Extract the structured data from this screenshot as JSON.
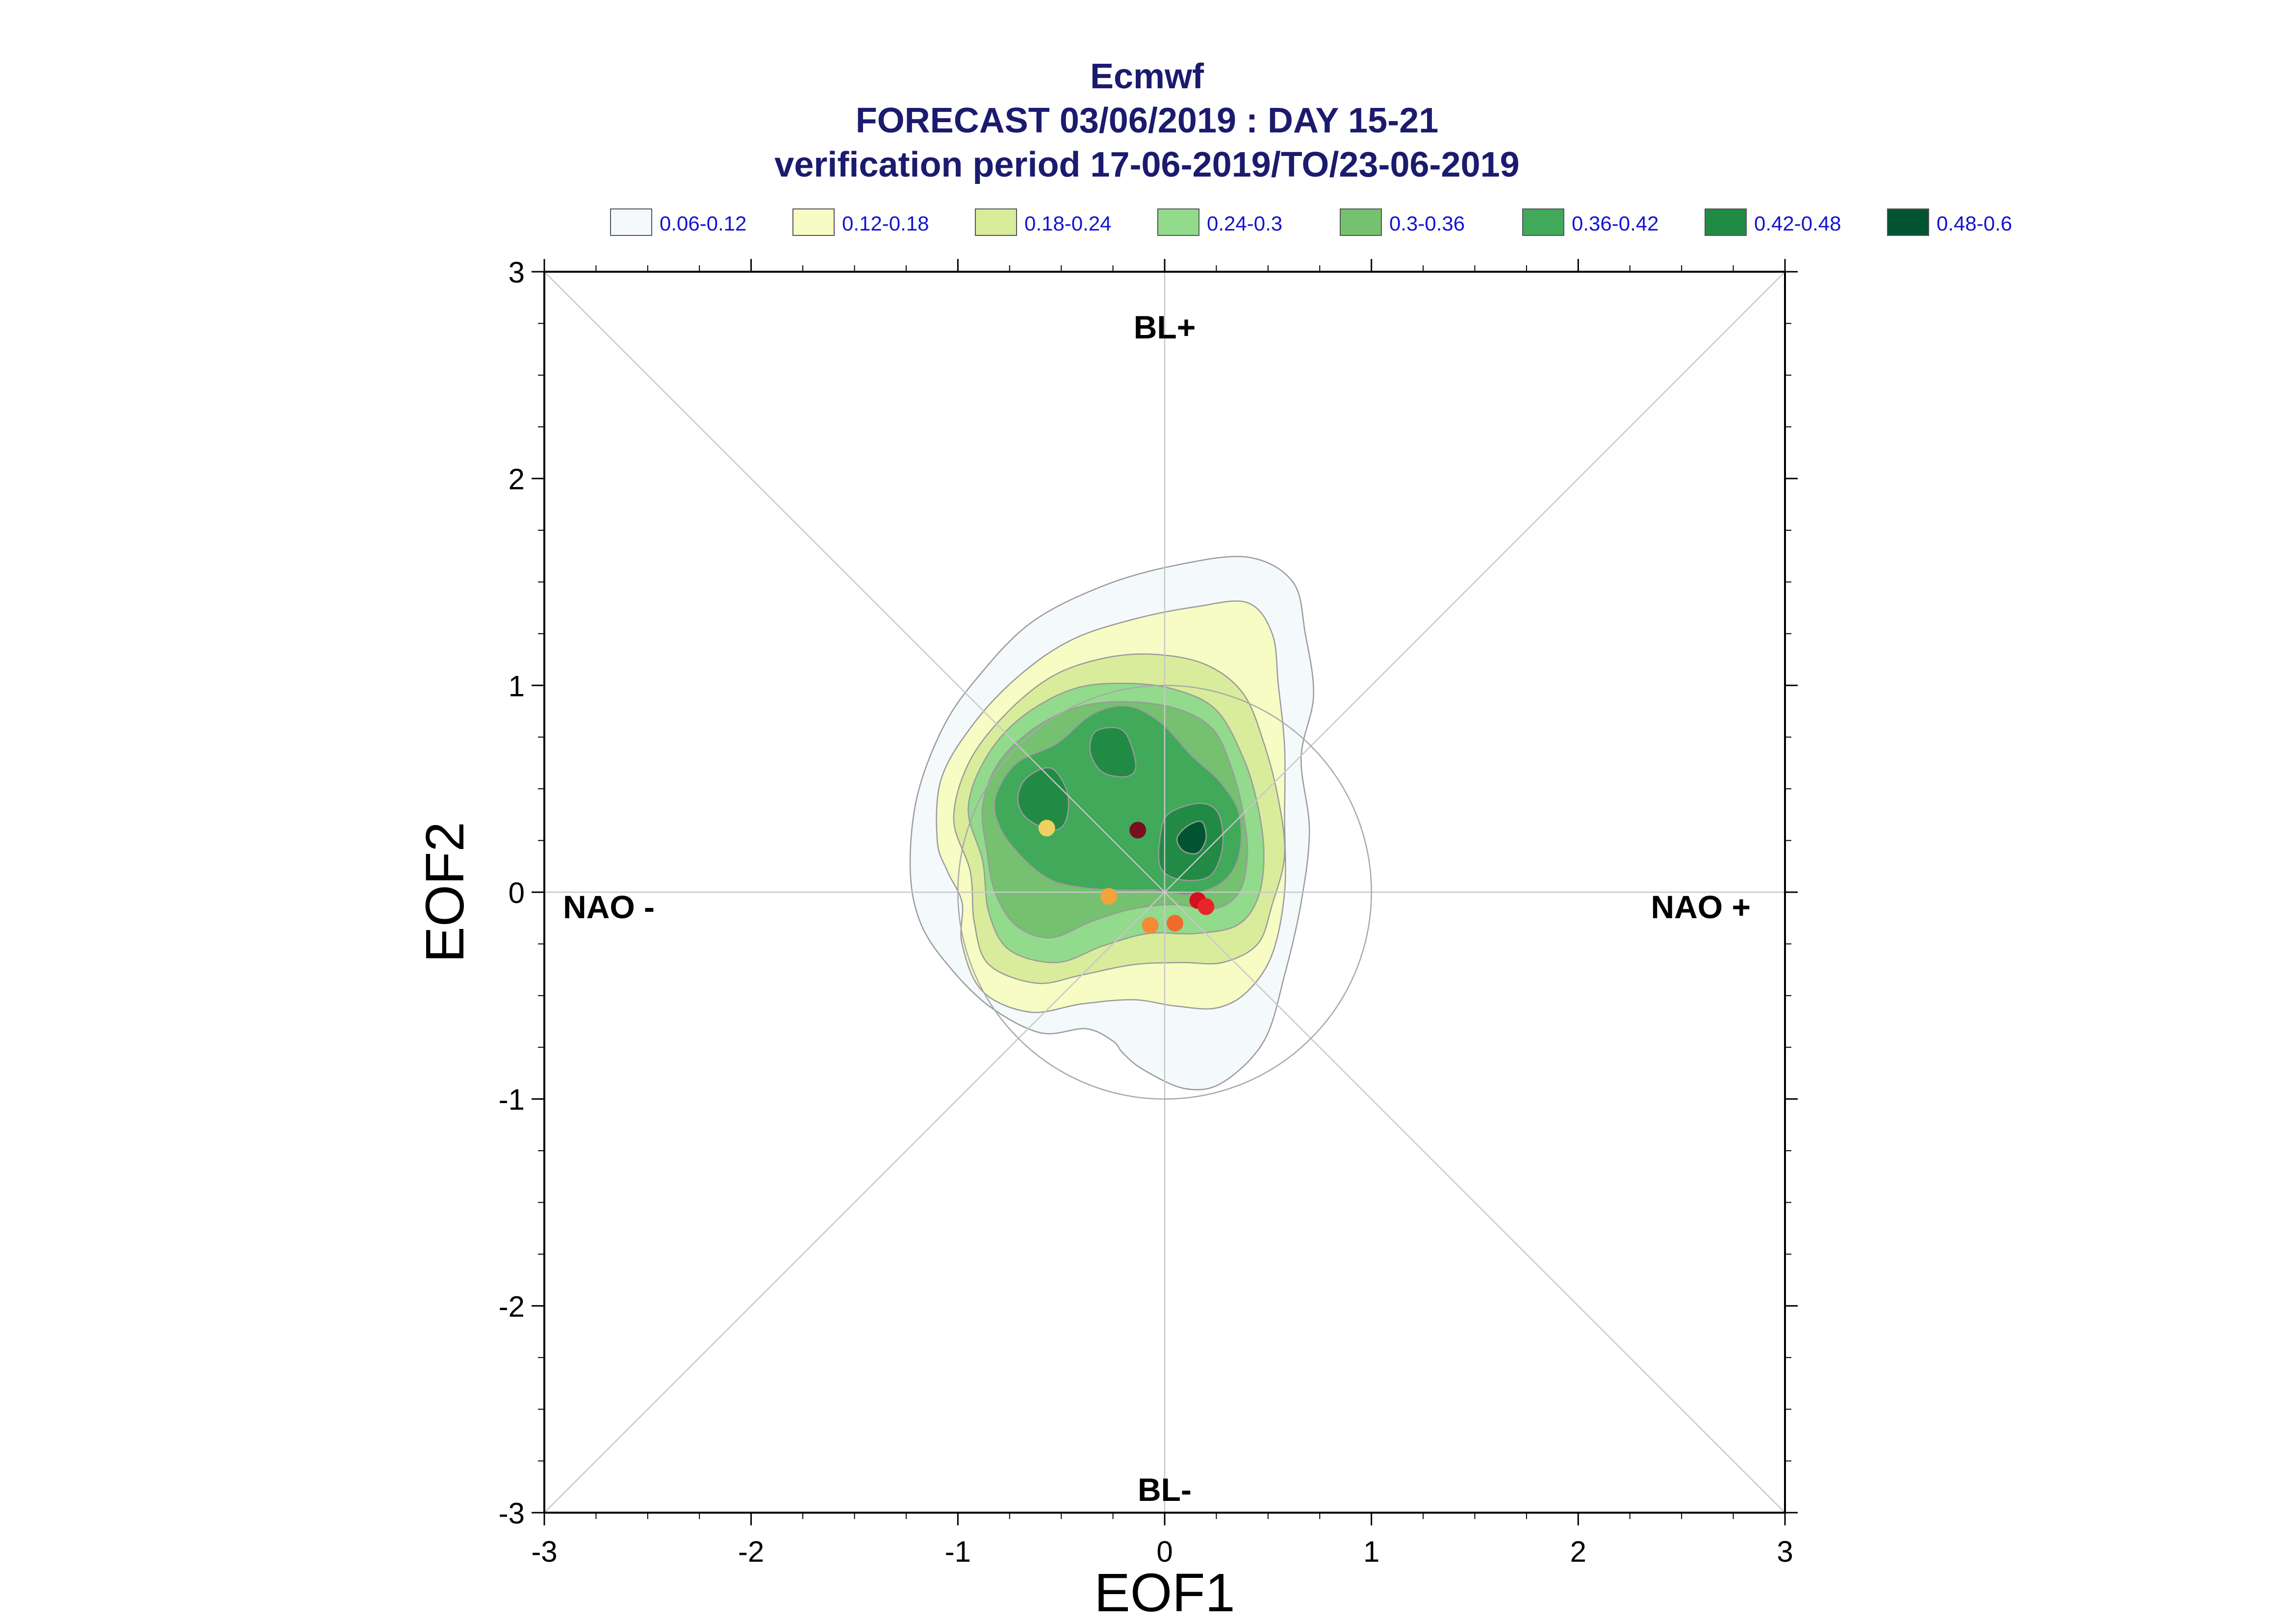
{
  "title": {
    "line1": "Ecmwf",
    "line2": "FORECAST 03/06/2019 : DAY 15-21",
    "line3": "verification period 17-06-2019/TO/23-06-2019"
  },
  "legend": [
    {
      "label": "0.06-0.12",
      "color": "#f4f9fc"
    },
    {
      "label": "0.12-0.18",
      "color": "#f7fbc4"
    },
    {
      "label": "0.18-0.24",
      "color": "#d9ec9c"
    },
    {
      "label": "0.24-0.3",
      "color": "#92da8c"
    },
    {
      "label": "0.3-0.36",
      "color": "#75c170"
    },
    {
      "label": "0.36-0.42",
      "color": "#40a95a"
    },
    {
      "label": "0.42-0.48",
      "color": "#218a44"
    },
    {
      "label": "0.48-0.6",
      "color": "#005432"
    }
  ],
  "chart_data": {
    "type": "scatter",
    "xlabel": "EOF1",
    "ylabel": "EOF2",
    "xlim": [
      -3,
      3
    ],
    "ylim": [
      -3,
      3
    ],
    "x_ticks": [
      "-3",
      "-2",
      "-1",
      "0",
      "1",
      "2",
      "3"
    ],
    "y_ticks": [
      "-3",
      "-2",
      "-1",
      "0",
      "1",
      "2",
      "3"
    ],
    "regime_labels": {
      "top": "BL+",
      "bottom": "BL-",
      "left": "NAO -",
      "right": "NAO +"
    },
    "reference_circle_radius": 1,
    "points": [
      {
        "x": -0.57,
        "y": 0.31,
        "color": "#f0d060"
      },
      {
        "x": -0.13,
        "y": 0.3,
        "color": "#7a0f1e"
      },
      {
        "x": -0.27,
        "y": -0.02,
        "color": "#f3a23c"
      },
      {
        "x": 0.16,
        "y": -0.04,
        "color": "#d4101e"
      },
      {
        "x": 0.2,
        "y": -0.07,
        "color": "#e8262a"
      },
      {
        "x": 0.05,
        "y": -0.15,
        "color": "#f06a2c"
      },
      {
        "x": -0.07,
        "y": -0.16,
        "color": "#f38a36"
      }
    ],
    "density_contours": [
      {
        "level": "0.06-0.12",
        "color": "#f4f9fc",
        "rings": [
          [
            [
              -1.23,
              0.1
            ],
            [
              -1.2,
              0.45
            ],
            [
              -1.08,
              0.78
            ],
            [
              -0.92,
              1.02
            ],
            [
              -0.65,
              1.3
            ],
            [
              -0.3,
              1.48
            ],
            [
              0.05,
              1.58
            ],
            [
              0.4,
              1.62
            ],
            [
              0.62,
              1.5
            ],
            [
              0.68,
              1.25
            ],
            [
              0.72,
              0.95
            ],
            [
              0.66,
              0.65
            ],
            [
              0.7,
              0.3
            ],
            [
              0.66,
              -0.05
            ],
            [
              0.58,
              -0.4
            ],
            [
              0.48,
              -0.72
            ],
            [
              0.28,
              -0.92
            ],
            [
              0.1,
              -0.95
            ],
            [
              -0.1,
              -0.86
            ],
            [
              -0.2,
              -0.78
            ],
            [
              -0.25,
              -0.72
            ],
            [
              -0.38,
              -0.66
            ],
            [
              -0.6,
              -0.68
            ],
            [
              -0.85,
              -0.55
            ],
            [
              -1.05,
              -0.35
            ],
            [
              -1.18,
              -0.15
            ]
          ]
        ]
      },
      {
        "level": "0.12-0.18",
        "color": "#f7fbc4",
        "rings": [
          [
            [
              -1.1,
              0.25
            ],
            [
              -1.08,
              0.55
            ],
            [
              -0.92,
              0.82
            ],
            [
              -0.7,
              1.05
            ],
            [
              -0.45,
              1.22
            ],
            [
              -0.15,
              1.32
            ],
            [
              0.15,
              1.38
            ],
            [
              0.4,
              1.4
            ],
            [
              0.52,
              1.25
            ],
            [
              0.55,
              1.0
            ],
            [
              0.58,
              0.7
            ],
            [
              0.58,
              0.35
            ],
            [
              0.58,
              0.0
            ],
            [
              0.52,
              -0.3
            ],
            [
              0.4,
              -0.48
            ],
            [
              0.25,
              -0.56
            ],
            [
              0.05,
              -0.55
            ],
            [
              -0.15,
              -0.52
            ],
            [
              -0.4,
              -0.54
            ],
            [
              -0.65,
              -0.58
            ],
            [
              -0.88,
              -0.48
            ],
            [
              -0.98,
              -0.25
            ],
            [
              -0.98,
              -0.05
            ],
            [
              -1.05,
              0.1
            ]
          ]
        ]
      },
      {
        "level": "0.18-0.24",
        "color": "#d9ec9c",
        "rings": [
          [
            [
              -1.02,
              0.35
            ],
            [
              -0.95,
              0.62
            ],
            [
              -0.78,
              0.85
            ],
            [
              -0.55,
              1.04
            ],
            [
              -0.3,
              1.13
            ],
            [
              -0.05,
              1.15
            ],
            [
              0.2,
              1.1
            ],
            [
              0.38,
              0.96
            ],
            [
              0.48,
              0.72
            ],
            [
              0.55,
              0.45
            ],
            [
              0.58,
              0.18
            ],
            [
              0.52,
              -0.06
            ],
            [
              0.45,
              -0.25
            ],
            [
              0.28,
              -0.34
            ],
            [
              0.08,
              -0.34
            ],
            [
              -0.15,
              -0.35
            ],
            [
              -0.4,
              -0.4
            ],
            [
              -0.62,
              -0.44
            ],
            [
              -0.85,
              -0.35
            ],
            [
              -0.92,
              -0.15
            ],
            [
              -0.94,
              0.1
            ]
          ]
        ]
      },
      {
        "level": "0.24-0.3",
        "color": "#92da8c",
        "rings": [
          [
            [
              -0.95,
              0.4
            ],
            [
              -0.87,
              0.64
            ],
            [
              -0.7,
              0.84
            ],
            [
              -0.45,
              0.98
            ],
            [
              -0.2,
              1.01
            ],
            [
              0.05,
              0.98
            ],
            [
              0.25,
              0.88
            ],
            [
              0.38,
              0.65
            ],
            [
              0.45,
              0.42
            ],
            [
              0.48,
              0.18
            ],
            [
              0.45,
              -0.03
            ],
            [
              0.35,
              -0.16
            ],
            [
              0.15,
              -0.2
            ],
            [
              -0.08,
              -0.2
            ],
            [
              -0.3,
              -0.26
            ],
            [
              -0.52,
              -0.34
            ],
            [
              -0.75,
              -0.28
            ],
            [
              -0.85,
              -0.1
            ],
            [
              -0.88,
              0.15
            ]
          ]
        ]
      },
      {
        "level": "0.3-0.36",
        "color": "#75c170",
        "rings": [
          [
            [
              -0.88,
              0.42
            ],
            [
              -0.8,
              0.63
            ],
            [
              -0.62,
              0.8
            ],
            [
              -0.4,
              0.9
            ],
            [
              -0.15,
              0.92
            ],
            [
              0.08,
              0.88
            ],
            [
              0.24,
              0.78
            ],
            [
              0.33,
              0.58
            ],
            [
              0.38,
              0.38
            ],
            [
              0.4,
              0.18
            ],
            [
              0.36,
              0.0
            ],
            [
              0.24,
              -0.08
            ],
            [
              0.05,
              -0.06
            ],
            [
              -0.15,
              -0.08
            ],
            [
              -0.35,
              -0.14
            ],
            [
              -0.55,
              -0.22
            ],
            [
              -0.72,
              -0.16
            ],
            [
              -0.82,
              0.0
            ],
            [
              -0.86,
              0.2
            ]
          ]
        ]
      },
      {
        "level": "0.36-0.42",
        "color": "#40a95a",
        "rings": [
          [
            [
              -0.82,
              0.45
            ],
            [
              -0.72,
              0.62
            ],
            [
              -0.52,
              0.72
            ],
            [
              -0.35,
              0.86
            ],
            [
              -0.18,
              0.9
            ],
            [
              -0.02,
              0.82
            ],
            [
              0.13,
              0.66
            ],
            [
              0.27,
              0.53
            ],
            [
              0.36,
              0.38
            ],
            [
              0.36,
              0.18
            ],
            [
              0.28,
              0.05
            ],
            [
              0.12,
              -0.01
            ],
            [
              -0.05,
              0.01
            ],
            [
              -0.18,
              0.01
            ],
            [
              -0.38,
              0.02
            ],
            [
              -0.55,
              0.06
            ],
            [
              -0.68,
              0.16
            ],
            [
              -0.79,
              0.3
            ]
          ]
        ]
      },
      {
        "level": "0.42-0.48",
        "color": "#218a44",
        "rings": [
          [
            [
              -0.67,
              0.55
            ],
            [
              -0.55,
              0.6
            ],
            [
              -0.47,
              0.48
            ],
            [
              -0.48,
              0.34
            ],
            [
              -0.55,
              0.3
            ],
            [
              -0.67,
              0.36
            ],
            [
              -0.71,
              0.45
            ]
          ],
          [
            [
              -0.33,
              0.78
            ],
            [
              -0.2,
              0.78
            ],
            [
              -0.14,
              0.62
            ],
            [
              -0.18,
              0.56
            ],
            [
              -0.3,
              0.58
            ],
            [
              -0.36,
              0.68
            ]
          ],
          [
            [
              0.02,
              0.38
            ],
            [
              0.17,
              0.43
            ],
            [
              0.26,
              0.38
            ],
            [
              0.28,
              0.22
            ],
            [
              0.22,
              0.08
            ],
            [
              0.08,
              0.06
            ],
            [
              -0.02,
              0.12
            ],
            [
              -0.02,
              0.28
            ]
          ]
        ]
      },
      {
        "level": "0.48-0.6",
        "color": "#005432",
        "rings": [
          [
            [
              0.11,
              0.32
            ],
            [
              0.18,
              0.34
            ],
            [
              0.2,
              0.26
            ],
            [
              0.16,
              0.19
            ],
            [
              0.09,
              0.2
            ],
            [
              0.06,
              0.26
            ]
          ]
        ]
      }
    ]
  }
}
